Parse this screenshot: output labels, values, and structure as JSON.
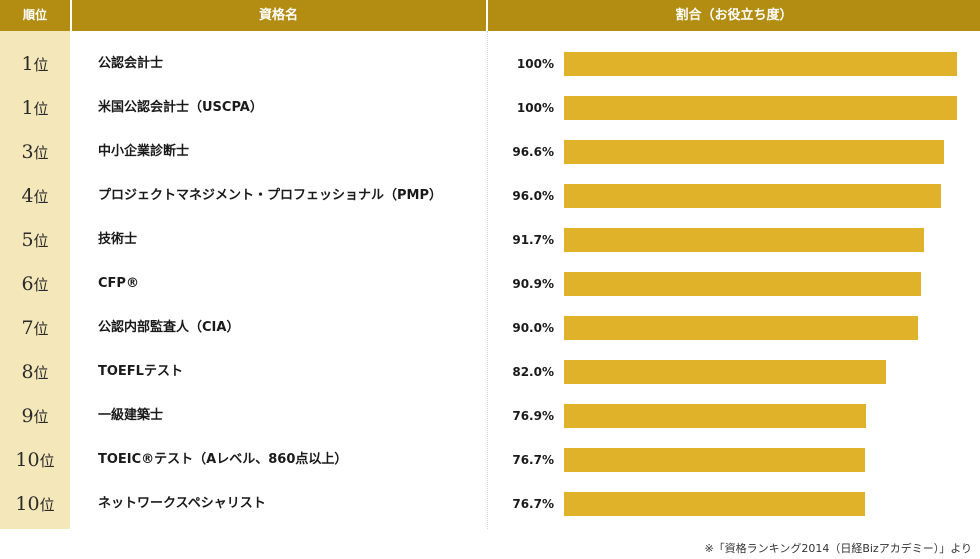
{
  "header": {
    "rank": "順位",
    "name": "資格名",
    "ratio": "割合（お役立ち度）"
  },
  "rank_unit": "位",
  "footnote": "※「資格ランキング2014（日経Bizアカデミー）」より",
  "colors": {
    "header_bg": "#b38c12",
    "rank_bg": "#f4e7b9",
    "bar": "#e0b229"
  },
  "chart_data": {
    "type": "bar",
    "orientation": "horizontal",
    "title": "割合（お役立ち度）",
    "unit": "%",
    "xlim": [
      0,
      100
    ],
    "rows": [
      {
        "rank": "1",
        "name": "公認会計士",
        "value": 100,
        "label": "100%"
      },
      {
        "rank": "1",
        "name": "米国公認会計士（USCPA）",
        "value": 100,
        "label": "100%"
      },
      {
        "rank": "3",
        "name": "中小企業診断士",
        "value": 96.6,
        "label": "96.6%"
      },
      {
        "rank": "4",
        "name": "プロジェクトマネジメント・プロフェッショナル（PMP）",
        "value": 96.0,
        "label": "96.0%"
      },
      {
        "rank": "5",
        "name": "技術士",
        "value": 91.7,
        "label": "91.7%"
      },
      {
        "rank": "6",
        "name": "CFP®",
        "value": 90.9,
        "label": "90.9%"
      },
      {
        "rank": "7",
        "name": "公認内部監査人（CIA）",
        "value": 90.0,
        "label": "90.0%"
      },
      {
        "rank": "8",
        "name": "TOEFLテスト",
        "value": 82.0,
        "label": "82.0%"
      },
      {
        "rank": "9",
        "name": "一級建築士",
        "value": 76.9,
        "label": "76.9%"
      },
      {
        "rank": "10",
        "name": "TOEIC®テスト（Aレベル、860点以上）",
        "value": 76.7,
        "label": "76.7%"
      },
      {
        "rank": "10",
        "name": "ネットワークスペシャリスト",
        "value": 76.7,
        "label": "76.7%"
      }
    ]
  }
}
